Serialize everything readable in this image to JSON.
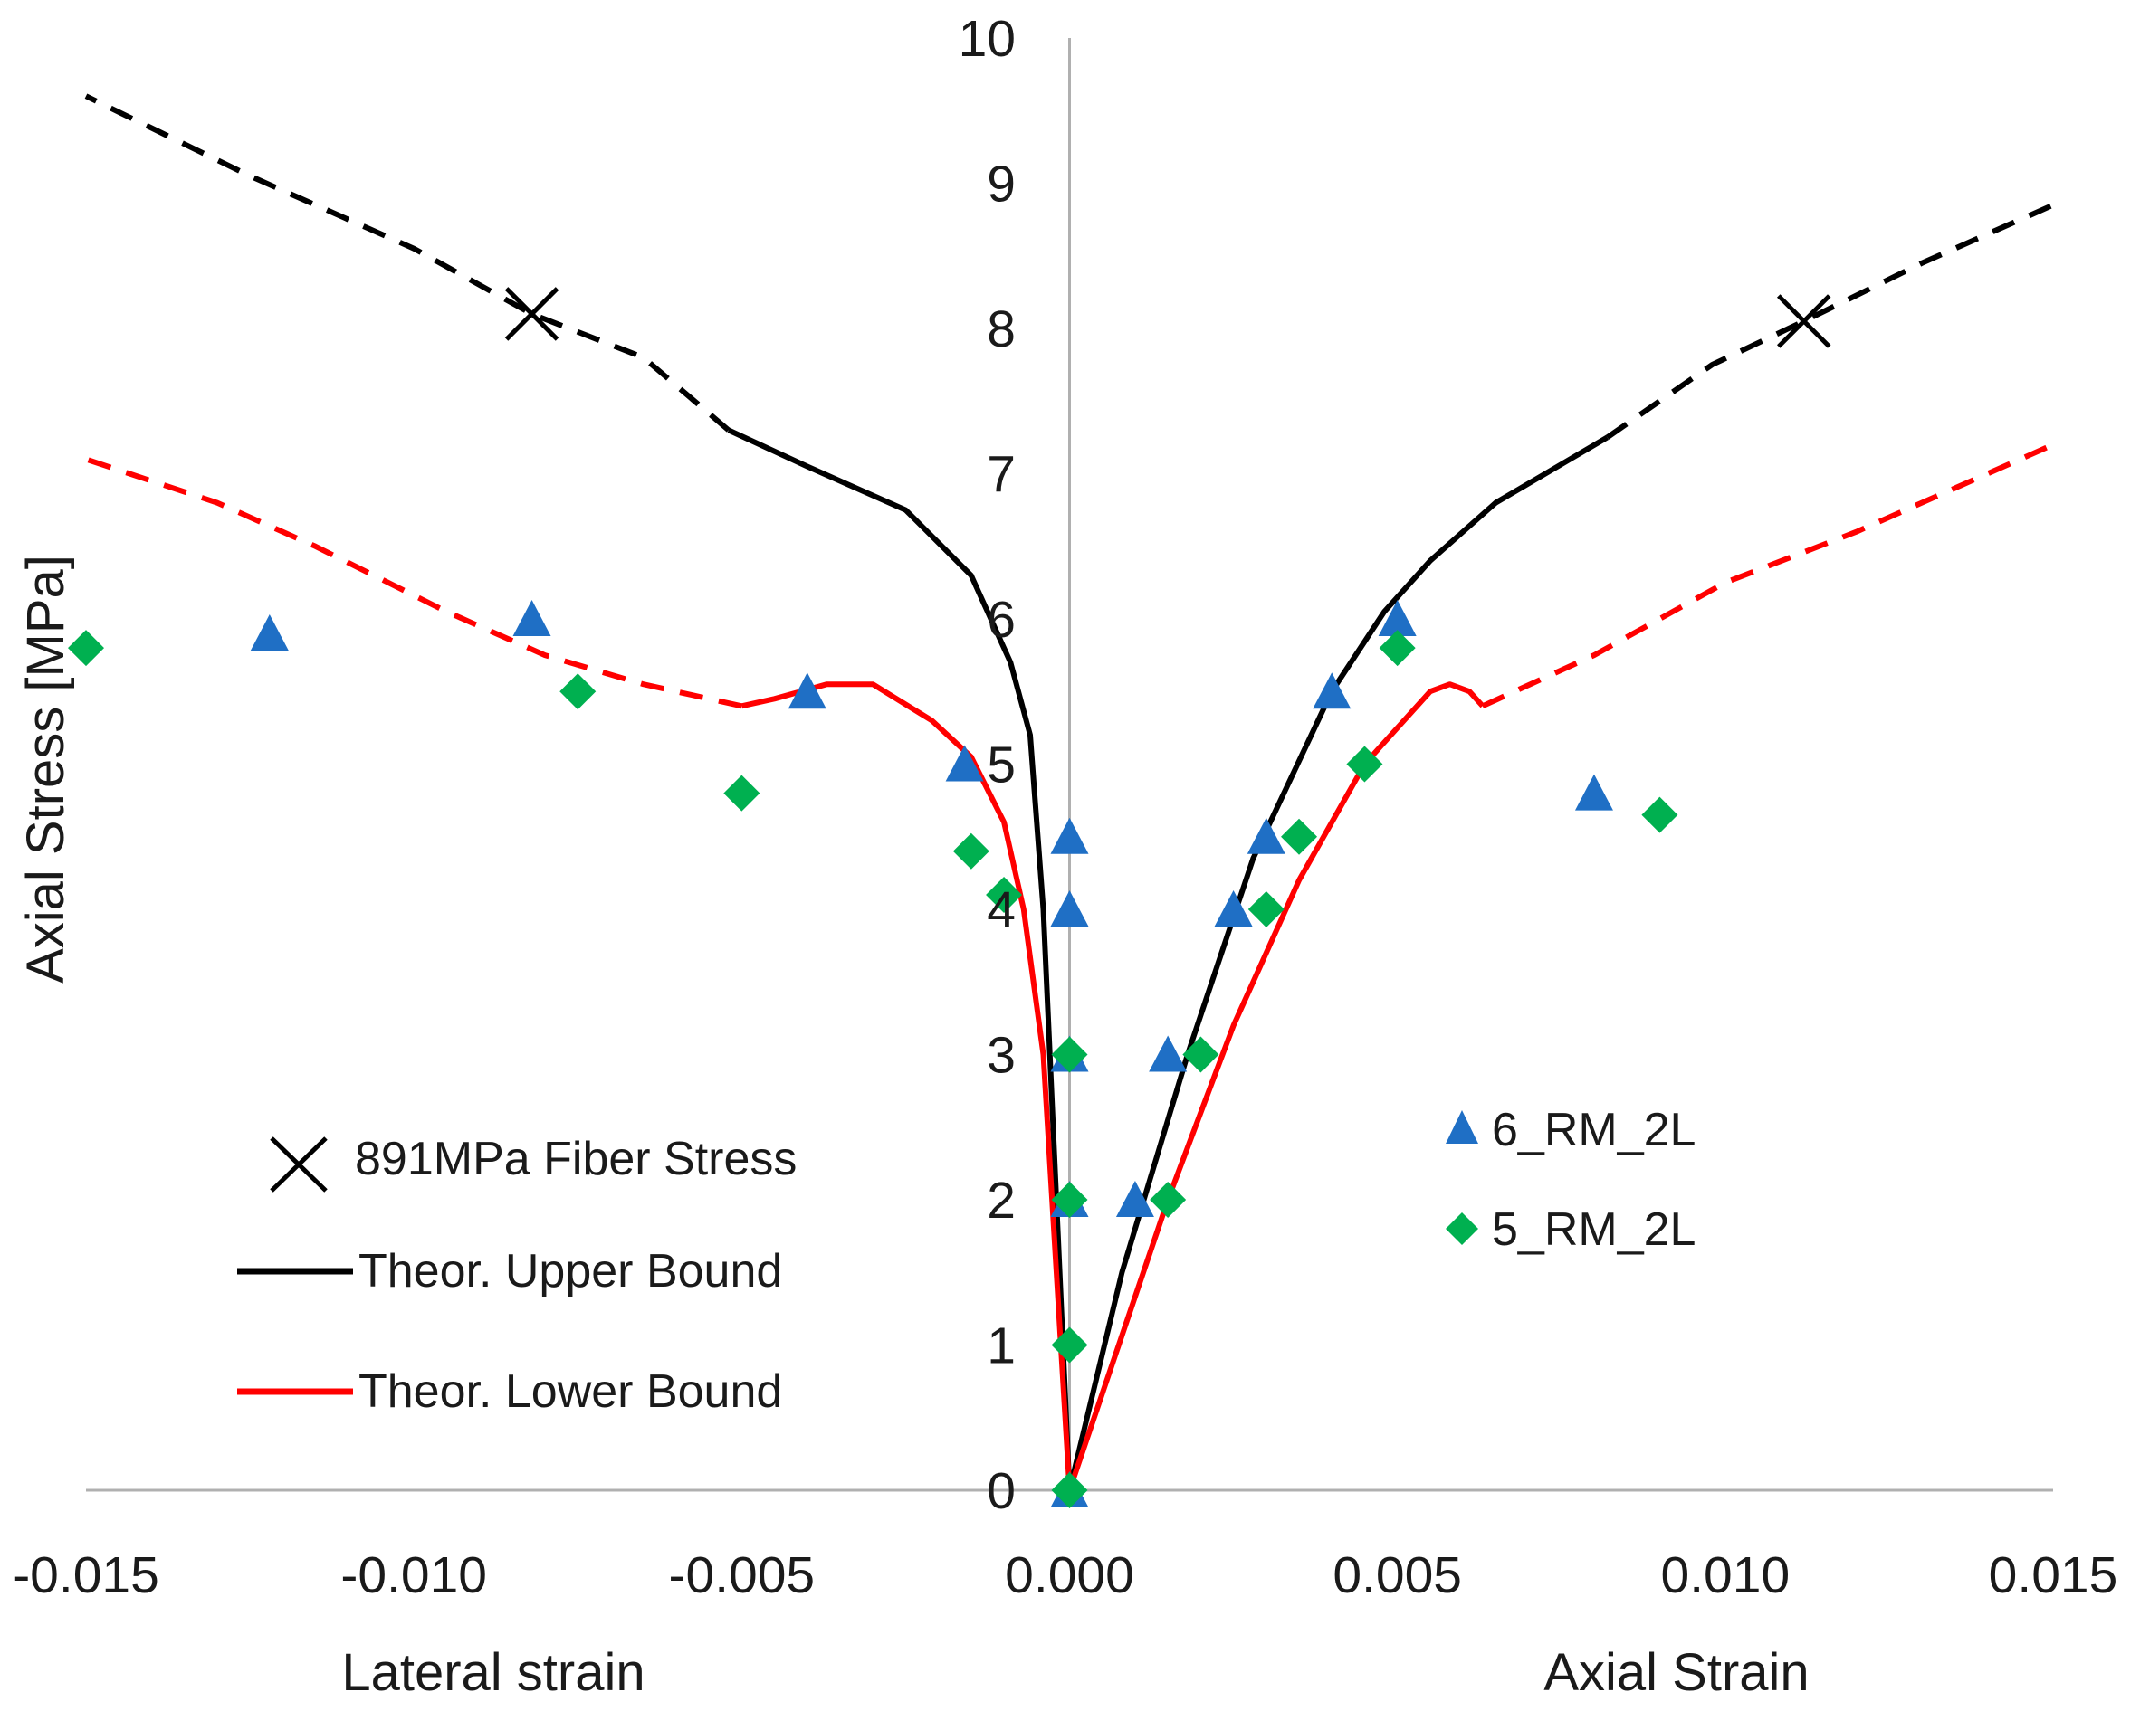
{
  "chart_data": {
    "type": "scatter",
    "title": "",
    "ylabel": "Axial Stress [MPa]",
    "xlabel_left": "Lateral strain",
    "xlabel_right": "Axial Strain",
    "xlim": [
      -0.015,
      0.015
    ],
    "ylim": [
      0,
      10
    ],
    "x_ticks": [
      "-0.015",
      "-0.010",
      "-0.005",
      "0.000",
      "0.005",
      "0.010",
      "0.015"
    ],
    "y_ticks": [
      "0",
      "1",
      "2",
      "3",
      "4",
      "5",
      "6",
      "7",
      "8",
      "9",
      "10"
    ],
    "grid": false,
    "colors": {
      "upper": "#000000",
      "lower": "#ff0000",
      "triangle": "#1f6fc5",
      "diamond": "#00b050",
      "axis": "#b0b0b0"
    },
    "legend_left": [
      {
        "label": "891MPa Fiber Stress",
        "marker": "x"
      },
      {
        "label": "Theor. Upper Bound",
        "marker": "line-black"
      },
      {
        "label": "Theor. Lower Bound",
        "marker": "line-red"
      }
    ],
    "legend_right": [
      {
        "label": "6_RM_2L",
        "marker": "triangle"
      },
      {
        "label": "5_RM_2L",
        "marker": "diamond"
      }
    ],
    "series": [
      {
        "name": "Theor. Upper Bound (lateral, solid)",
        "style": "solid",
        "color_key": "upper",
        "points": [
          [
            0,
            0
          ],
          [
            -0.0002,
            2
          ],
          [
            -0.0004,
            4
          ],
          [
            -0.0006,
            5.2
          ],
          [
            -0.0009,
            5.7
          ],
          [
            -0.0015,
            6.3
          ],
          [
            -0.0025,
            6.75
          ],
          [
            -0.004,
            7.05
          ],
          [
            -0.0052,
            7.3
          ]
        ]
      },
      {
        "name": "Theor. Upper Bound (lateral, extrapolated)",
        "style": "dashed",
        "color_key": "upper",
        "points": [
          [
            -0.0052,
            7.3
          ],
          [
            -0.0065,
            7.8
          ],
          [
            -0.0082,
            8.1
          ],
          [
            -0.01,
            8.55
          ],
          [
            -0.0125,
            9.05
          ],
          [
            -0.015,
            9.6
          ]
        ]
      },
      {
        "name": "Theor. Upper Bound (axial, solid)",
        "style": "solid",
        "color_key": "upper",
        "points": [
          [
            0,
            0
          ],
          [
            0.0008,
            1.5
          ],
          [
            0.0018,
            3
          ],
          [
            0.0028,
            4.35
          ],
          [
            0.004,
            5.5
          ],
          [
            0.0048,
            6.05
          ],
          [
            0.0055,
            6.4
          ],
          [
            0.0065,
            6.8
          ],
          [
            0.0082,
            7.25
          ]
        ]
      },
      {
        "name": "Theor. Upper Bound (axial, extrapolated)",
        "style": "dashed",
        "color_key": "upper",
        "points": [
          [
            0.0082,
            7.25
          ],
          [
            0.0098,
            7.75
          ],
          [
            0.0112,
            8.05
          ],
          [
            0.013,
            8.45
          ],
          [
            0.015,
            8.85
          ]
        ]
      },
      {
        "name": "Theor. Lower Bound (lateral, solid)",
        "style": "solid",
        "color_key": "lower",
        "points": [
          [
            0,
            0
          ],
          [
            -0.0002,
            1.5
          ],
          [
            -0.0004,
            3
          ],
          [
            -0.0007,
            4
          ],
          [
            -0.001,
            4.6
          ],
          [
            -0.0015,
            5.05
          ],
          [
            -0.0021,
            5.3
          ],
          [
            -0.003,
            5.55
          ],
          [
            -0.0037,
            5.55
          ],
          [
            -0.0045,
            5.45
          ],
          [
            -0.005,
            5.4
          ]
        ]
      },
      {
        "name": "Theor. Lower Bound (lateral, extrapolated)",
        "style": "dashed",
        "color_key": "lower",
        "points": [
          [
            -0.005,
            5.4
          ],
          [
            -0.0065,
            5.55
          ],
          [
            -0.008,
            5.75
          ],
          [
            -0.0095,
            6.05
          ],
          [
            -0.0115,
            6.5
          ],
          [
            -0.013,
            6.8
          ],
          [
            -0.015,
            7.1
          ]
        ]
      },
      {
        "name": "Theor. Lower Bound (axial, solid)",
        "style": "solid",
        "color_key": "lower",
        "points": [
          [
            0,
            0
          ],
          [
            0.0015,
            2
          ],
          [
            0.0025,
            3.2
          ],
          [
            0.0035,
            4.2
          ],
          [
            0.0045,
            5
          ],
          [
            0.0055,
            5.5
          ],
          [
            0.0058,
            5.55
          ],
          [
            0.0061,
            5.5
          ],
          [
            0.0063,
            5.4
          ]
        ]
      },
      {
        "name": "Theor. Lower Bound (axial, extrapolated)",
        "style": "dashed",
        "color_key": "lower",
        "points": [
          [
            0.0063,
            5.4
          ],
          [
            0.008,
            5.75
          ],
          [
            0.01,
            6.25
          ],
          [
            0.012,
            6.6
          ],
          [
            0.015,
            7.2
          ]
        ]
      },
      {
        "name": "891MPa Fiber Stress",
        "style": "x-marker",
        "color_key": "upper",
        "points": [
          [
            -0.0082,
            8.1
          ],
          [
            0.0112,
            8.05
          ]
        ]
      },
      {
        "name": "6_RM_2L",
        "style": "triangle",
        "color_key": "triangle",
        "points": [
          [
            -0.0122,
            5.9
          ],
          [
            -0.0082,
            6.0
          ],
          [
            -0.004,
            5.5
          ],
          [
            -0.0016,
            5.0
          ],
          [
            0,
            4.5
          ],
          [
            0,
            4.0
          ],
          [
            0,
            3.0
          ],
          [
            0,
            2.0
          ],
          [
            0,
            0
          ],
          [
            0.001,
            2.0
          ],
          [
            0.0015,
            3.0
          ],
          [
            0.0025,
            4.0
          ],
          [
            0.003,
            4.5
          ],
          [
            0.004,
            5.5
          ],
          [
            0.005,
            6.0
          ],
          [
            0.008,
            4.8
          ]
        ]
      },
      {
        "name": "5_RM_2L",
        "style": "diamond",
        "color_key": "diamond",
        "points": [
          [
            -0.015,
            5.8
          ],
          [
            -0.0075,
            5.5
          ],
          [
            -0.005,
            4.8
          ],
          [
            -0.0015,
            4.4
          ],
          [
            -0.001,
            4.1
          ],
          [
            0,
            3.0
          ],
          [
            0,
            2.0
          ],
          [
            0,
            1.0
          ],
          [
            0,
            0
          ],
          [
            0.0015,
            2.0
          ],
          [
            0.002,
            3.0
          ],
          [
            0.003,
            4.0
          ],
          [
            0.0035,
            4.5
          ],
          [
            0.0045,
            5.0
          ],
          [
            0.005,
            5.8
          ],
          [
            0.009,
            4.65
          ]
        ]
      }
    ]
  }
}
